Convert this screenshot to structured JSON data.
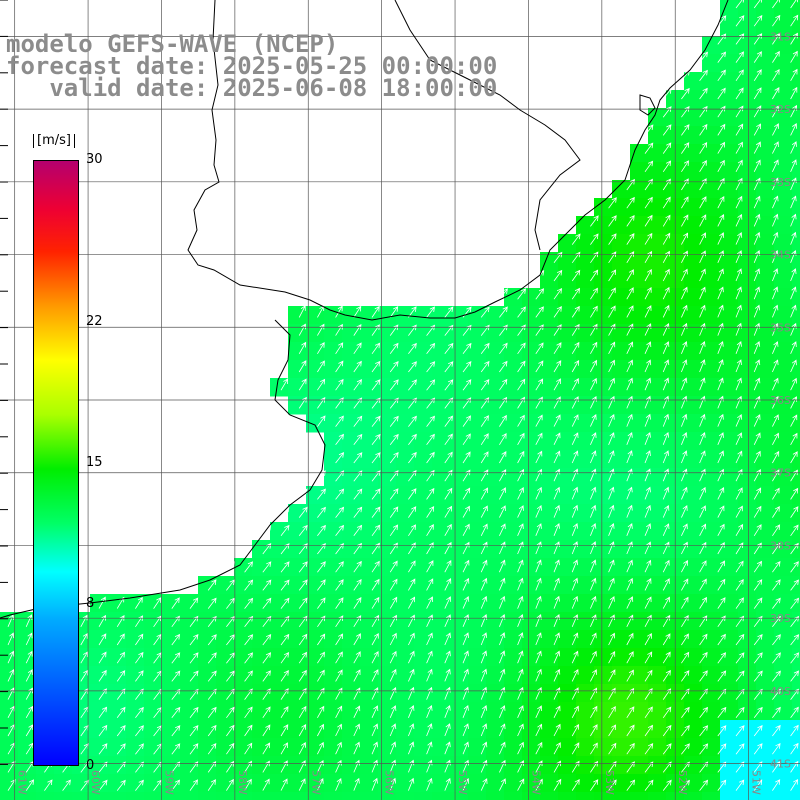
{
  "header": {
    "model_line": "modelo GEFS-WAVE (NCEP)",
    "forecast_line": "forecast date: 2025-05-25 00:00:00",
    "valid_line": "   valid date: 2025-06-08 18:00:00"
  },
  "colorbar": {
    "units": "[m/s]",
    "ticks": [
      "30",
      "22",
      "15",
      "8",
      "0"
    ],
    "tick_values": [
      30,
      22,
      15,
      8,
      0
    ],
    "range": [
      0,
      30
    ]
  },
  "map_data": {
    "type": "wind-vector-field",
    "extent_lon": [
      -61.2,
      -50.3
    ],
    "extent_lat": [
      -41.5,
      -30.5
    ],
    "lon_labels": [
      "61W",
      "60W",
      "59W",
      "58W",
      "57W",
      "56W",
      "55W",
      "54W",
      "53W",
      "52W",
      "51W"
    ],
    "lat_labels": [
      "31S",
      "32S",
      "33S",
      "34S",
      "35S",
      "36S",
      "37S",
      "38S",
      "39S",
      "40S",
      "41S"
    ],
    "wind_direction": "toward north-east",
    "speed_range_shown": [
      9,
      19
    ]
  },
  "colors": {
    "title": "#8c8c8c",
    "coast": "#000000",
    "grid": "#555555",
    "arrows": "#ffffff",
    "land": "#ffffff"
  }
}
